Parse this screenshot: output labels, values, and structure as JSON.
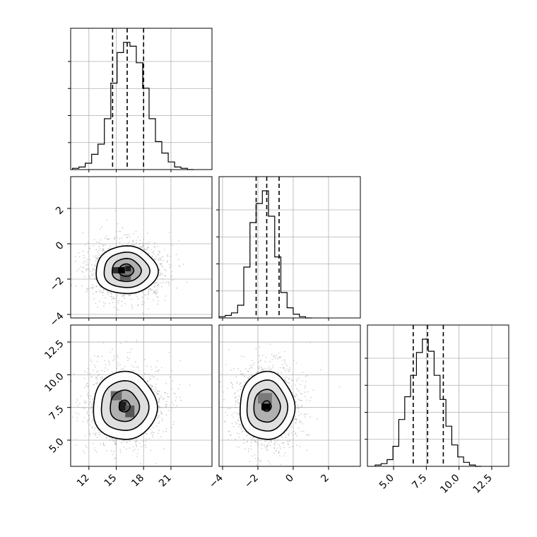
{
  "chart_data": {
    "type": "corner",
    "grid": true,
    "parameters": [
      {
        "index": 0,
        "range": [
          10,
          25.5
        ],
        "ticks": [
          12,
          15,
          18,
          21
        ],
        "tick_labels": [
          "12",
          "15",
          "18",
          "21"
        ],
        "quantiles": [
          14.6,
          16.2,
          18.0
        ],
        "histogram": {
          "bin_edges": [
            10.2,
            10.9,
            11.6,
            12.3,
            13.0,
            13.7,
            14.4,
            15.1,
            15.8,
            16.5,
            17.2,
            17.9,
            18.6,
            19.3,
            20.0,
            20.7,
            21.4,
            22.1,
            22.8,
            23.5
          ],
          "counts": [
            1,
            2,
            5,
            12,
            20,
            40,
            68,
            92,
            100,
            97,
            84,
            64,
            40,
            22,
            13,
            6,
            2,
            1,
            0
          ]
        }
      },
      {
        "index": 1,
        "range": [
          -4.2,
          3.8
        ],
        "ticks": [
          -4,
          -2,
          0,
          2
        ],
        "tick_labels": [
          "−4",
          "−2",
          "0",
          "2"
        ],
        "quantiles": [
          -2.1,
          -1.5,
          -0.8
        ],
        "histogram": {
          "bin_edges": [
            -4.2,
            -3.85,
            -3.5,
            -3.15,
            -2.8,
            -2.45,
            -2.1,
            -1.75,
            -1.4,
            -1.05,
            -0.7,
            -0.35,
            0.0,
            0.35,
            0.7,
            1.05
          ],
          "counts": [
            1,
            2,
            4,
            10,
            40,
            75,
            90,
            100,
            80,
            48,
            20,
            8,
            3,
            1,
            0
          ]
        }
      },
      {
        "index": 2,
        "range": [
          3.0,
          13.8
        ],
        "ticks": [
          5.0,
          7.5,
          10.0,
          12.5
        ],
        "tick_labels": [
          "5.0",
          "7.5",
          "10.0",
          "12.5"
        ],
        "quantiles": [
          6.5,
          7.6,
          8.8
        ],
        "histogram": {
          "bin_edges": [
            3.6,
            4.05,
            4.5,
            4.95,
            5.4,
            5.85,
            6.3,
            6.75,
            7.2,
            7.65,
            8.1,
            8.55,
            9.0,
            9.45,
            9.9,
            10.35,
            10.8,
            11.25,
            11.7
          ],
          "counts": [
            1,
            2,
            5,
            15,
            35,
            52,
            68,
            85,
            95,
            86,
            68,
            50,
            30,
            16,
            7,
            3,
            1,
            0
          ]
        }
      }
    ],
    "pairs": [
      {
        "row": 1,
        "col": 0,
        "center": [
          16.1,
          -1.5
        ],
        "image_cells": [
          {
            "x": 15.5,
            "y": -1.5,
            "w": 0.9,
            "h": 0.35,
            "shade": "#000000"
          },
          {
            "x": 16.3,
            "y": -1.4,
            "w": 0.6,
            "h": 0.3,
            "shade": "#1a1a1a"
          },
          {
            "x": 14.9,
            "y": -1.5,
            "w": 0.6,
            "h": 0.35,
            "shade": "#2e2e2e"
          },
          {
            "x": 16.0,
            "y": -1.9,
            "w": 1.2,
            "h": 0.35,
            "shade": "#606060"
          }
        ],
        "contours": [
          {
            "rx": 3.4,
            "ry": 1.35
          },
          {
            "rx": 2.5,
            "ry": 1.0
          },
          {
            "rx": 1.6,
            "ry": 0.65
          },
          {
            "rx": 0.8,
            "ry": 0.35
          }
        ]
      },
      {
        "row": 2,
        "col": 0,
        "center": [
          15.9,
          7.6
        ],
        "image_cells": [
          {
            "x": 15.7,
            "y": 7.6,
            "w": 0.8,
            "h": 0.7,
            "shade": "#1c1c1c"
          },
          {
            "x": 16.5,
            "y": 7.2,
            "w": 1.0,
            "h": 0.9,
            "shade": "#555555"
          },
          {
            "x": 15.0,
            "y": 8.4,
            "w": 1.2,
            "h": 0.7,
            "shade": "#6a6a6a"
          }
        ],
        "contours": [
          {
            "rx": 3.5,
            "ry": 2.6
          },
          {
            "rx": 2.6,
            "ry": 1.9
          },
          {
            "rx": 1.6,
            "ry": 1.2
          },
          {
            "rx": 0.6,
            "ry": 0.45
          }
        ]
      },
      {
        "row": 2,
        "col": 1,
        "center": [
          -1.5,
          7.6
        ],
        "image_cells": [
          {
            "x": -1.55,
            "y": 7.55,
            "w": 0.5,
            "h": 0.5,
            "shade": "#000000"
          },
          {
            "x": -1.6,
            "y": 8.2,
            "w": 0.8,
            "h": 0.8,
            "shade": "#7a7a7a"
          }
        ],
        "contours": [
          {
            "rx": 1.55,
            "ry": 2.6
          },
          {
            "rx": 1.15,
            "ry": 1.95
          },
          {
            "rx": 0.75,
            "ry": 1.25
          },
          {
            "rx": 0.25,
            "ry": 0.4
          }
        ]
      }
    ]
  }
}
